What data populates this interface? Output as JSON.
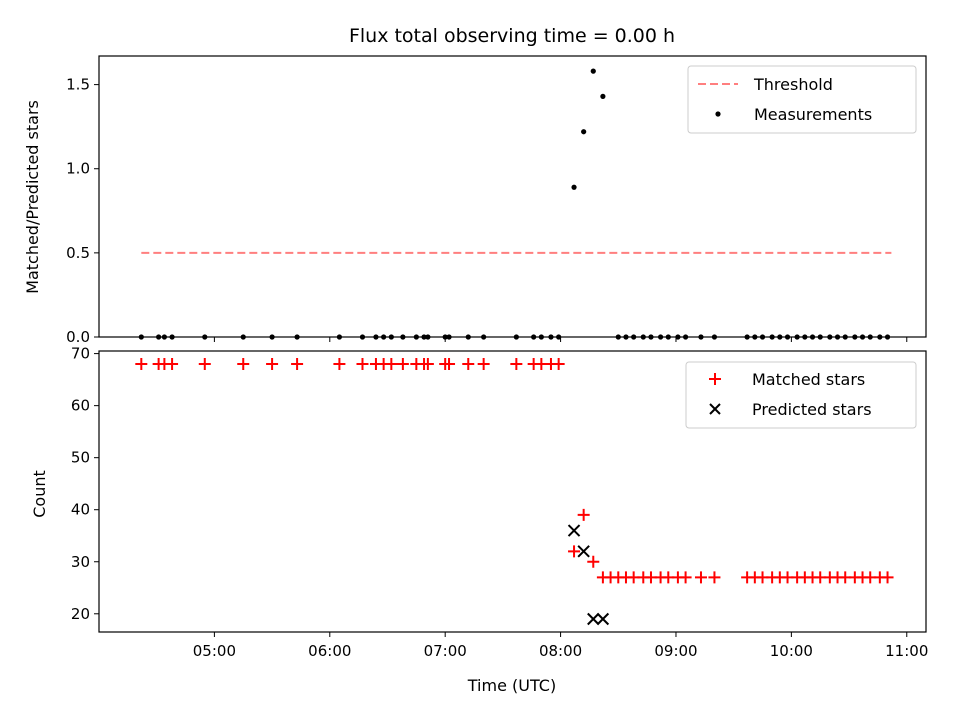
{
  "chart_data": {
    "title": "Flux total observing time = 0.00 h",
    "shared_x": {
      "label": "Time (UTC)",
      "range": [
        "04:00",
        "11:10"
      ],
      "ticks": [
        "05:00",
        "06:00",
        "07:00",
        "08:00",
        "09:00",
        "10:00",
        "11:00"
      ]
    },
    "panels": [
      {
        "type": "scatter",
        "ylabel": "Matched/Predicted stars",
        "ylim": [
          0.0,
          1.67
        ],
        "yticks": [
          0.0,
          0.5,
          1.0,
          1.5
        ],
        "legend": {
          "position": "top-right"
        },
        "threshold": {
          "name": "Threshold",
          "value": 0.5,
          "x_start": "04:22",
          "x_end": "10:52",
          "color": "#ff7f7f"
        },
        "series": [
          {
            "name": "Measurements",
            "color": "#000000",
            "points": [
              [
                "04:22",
                0
              ],
              [
                "04:31",
                0
              ],
              [
                "04:34",
                0
              ],
              [
                "04:38",
                0
              ],
              [
                "04:55",
                0
              ],
              [
                "05:15",
                0
              ],
              [
                "05:30",
                0
              ],
              [
                "05:43",
                0
              ],
              [
                "06:05",
                0
              ],
              [
                "06:17",
                0
              ],
              [
                "06:24",
                0
              ],
              [
                "06:28",
                0
              ],
              [
                "06:32",
                0
              ],
              [
                "06:38",
                0
              ],
              [
                "06:45",
                0
              ],
              [
                "06:49",
                0
              ],
              [
                "06:51",
                0
              ],
              [
                "07:00",
                0
              ],
              [
                "07:02",
                0
              ],
              [
                "07:12",
                0
              ],
              [
                "07:20",
                0
              ],
              [
                "07:37",
                0
              ],
              [
                "07:46",
                0
              ],
              [
                "07:50",
                0
              ],
              [
                "07:55",
                0
              ],
              [
                "07:59",
                0
              ],
              [
                "08:07",
                0.89
              ],
              [
                "08:12",
                1.22
              ],
              [
                "08:17",
                1.58
              ],
              [
                "08:22",
                1.43
              ],
              [
                "08:30",
                0
              ],
              [
                "08:34",
                0
              ],
              [
                "08:38",
                0
              ],
              [
                "08:43",
                0
              ],
              [
                "08:47",
                0
              ],
              [
                "08:52",
                0
              ],
              [
                "08:56",
                0
              ],
              [
                "09:01",
                0
              ],
              [
                "09:05",
                0
              ],
              [
                "09:13",
                0
              ],
              [
                "09:20",
                0
              ],
              [
                "09:37",
                0
              ],
              [
                "09:41",
                0
              ],
              [
                "09:45",
                0
              ],
              [
                "09:50",
                0
              ],
              [
                "09:54",
                0
              ],
              [
                "09:58",
                0
              ],
              [
                "10:03",
                0
              ],
              [
                "10:07",
                0
              ],
              [
                "10:11",
                0
              ],
              [
                "10:15",
                0
              ],
              [
                "10:20",
                0
              ],
              [
                "10:24",
                0
              ],
              [
                "10:28",
                0
              ],
              [
                "10:33",
                0
              ],
              [
                "10:37",
                0
              ],
              [
                "10:41",
                0
              ],
              [
                "10:46",
                0
              ],
              [
                "10:50",
                0
              ]
            ]
          }
        ]
      },
      {
        "type": "scatter",
        "ylabel": "Count",
        "ylim": [
          16.5,
          70.5
        ],
        "yticks": [
          20,
          30,
          40,
          50,
          60,
          70
        ],
        "legend": {
          "position": "top-right"
        },
        "series": [
          {
            "name": "Matched stars",
            "marker": "+",
            "color": "#ff0000",
            "points": [
              [
                "04:22",
                68
              ],
              [
                "04:31",
                68
              ],
              [
                "04:34",
                68
              ],
              [
                "04:38",
                68
              ],
              [
                "04:55",
                68
              ],
              [
                "05:15",
                68
              ],
              [
                "05:30",
                68
              ],
              [
                "05:43",
                68
              ],
              [
                "06:05",
                68
              ],
              [
                "06:17",
                68
              ],
              [
                "06:24",
                68
              ],
              [
                "06:28",
                68
              ],
              [
                "06:32",
                68
              ],
              [
                "06:38",
                68
              ],
              [
                "06:45",
                68
              ],
              [
                "06:49",
                68
              ],
              [
                "06:51",
                68
              ],
              [
                "07:00",
                68
              ],
              [
                "07:02",
                68
              ],
              [
                "07:12",
                68
              ],
              [
                "07:20",
                68
              ],
              [
                "07:37",
                68
              ],
              [
                "07:46",
                68
              ],
              [
                "07:50",
                68
              ],
              [
                "07:55",
                68
              ],
              [
                "07:59",
                68
              ],
              [
                "08:07",
                32
              ],
              [
                "08:12",
                39
              ],
              [
                "08:17",
                30
              ],
              [
                "08:22",
                27
              ],
              [
                "08:26",
                27
              ],
              [
                "08:30",
                27
              ],
              [
                "08:34",
                27
              ],
              [
                "08:38",
                27
              ],
              [
                "08:43",
                27
              ],
              [
                "08:47",
                27
              ],
              [
                "08:52",
                27
              ],
              [
                "08:56",
                27
              ],
              [
                "09:01",
                27
              ],
              [
                "09:05",
                27
              ],
              [
                "09:13",
                27
              ],
              [
                "09:20",
                27
              ],
              [
                "09:37",
                27
              ],
              [
                "09:41",
                27
              ],
              [
                "09:45",
                27
              ],
              [
                "09:50",
                27
              ],
              [
                "09:54",
                27
              ],
              [
                "09:58",
                27
              ],
              [
                "10:03",
                27
              ],
              [
                "10:07",
                27
              ],
              [
                "10:11",
                27
              ],
              [
                "10:15",
                27
              ],
              [
                "10:20",
                27
              ],
              [
                "10:24",
                27
              ],
              [
                "10:28",
                27
              ],
              [
                "10:33",
                27
              ],
              [
                "10:37",
                27
              ],
              [
                "10:41",
                27
              ],
              [
                "10:46",
                27
              ],
              [
                "10:50",
                27
              ]
            ]
          },
          {
            "name": "Predicted stars",
            "marker": "x",
            "color": "#000000",
            "points": [
              [
                "08:07",
                36
              ],
              [
                "08:12",
                32
              ],
              [
                "08:17",
                19
              ],
              [
                "08:22",
                19
              ]
            ]
          }
        ]
      }
    ]
  }
}
